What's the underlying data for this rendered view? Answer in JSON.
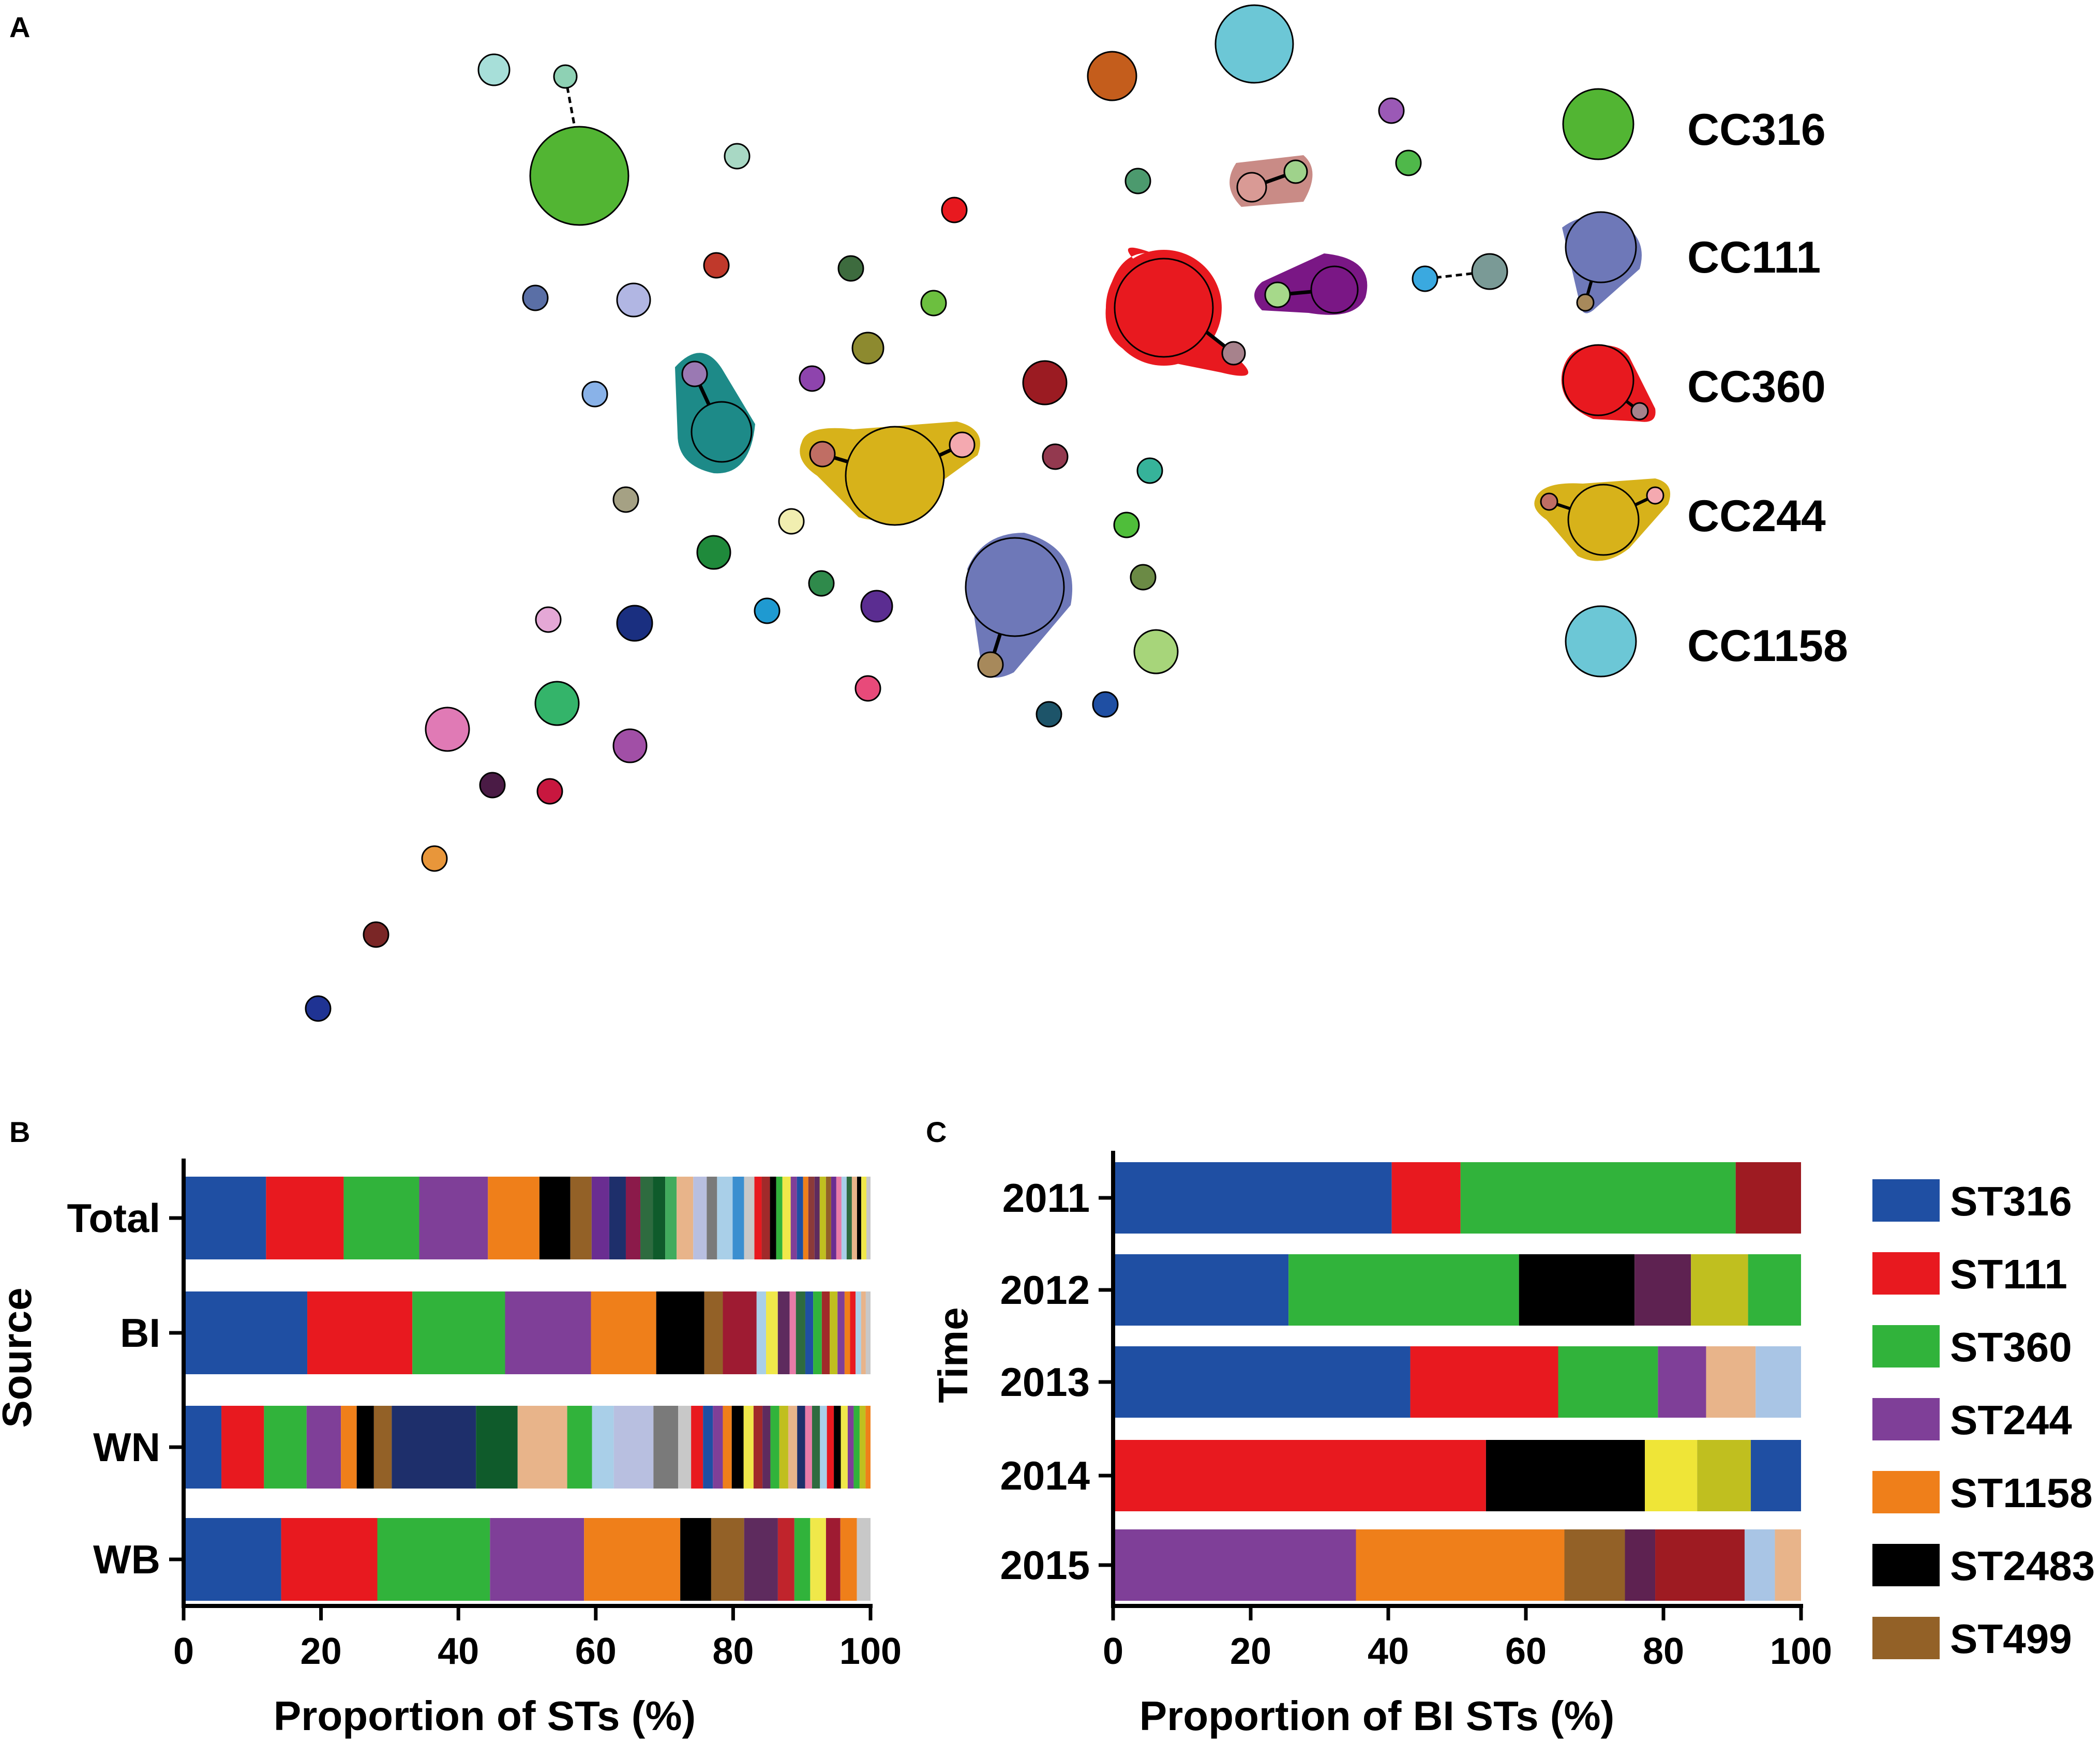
{
  "labels": {
    "panel_a": "A",
    "panel_b": "B",
    "panel_c": "C"
  },
  "network": {
    "legend": [
      {
        "label": "CC316",
        "color": "#52b533"
      },
      {
        "label": "CC111",
        "color": "#6e78b8"
      },
      {
        "label": "CC360",
        "color": "#e8191f"
      },
      {
        "label": "CC244",
        "color": "#d7b21a"
      },
      {
        "label": "CC1158",
        "color": "#6cc7d6"
      }
    ]
  },
  "chart_data": [
    {
      "type": "bar",
      "orientation": "horizontal",
      "stacked": true,
      "panel": "B",
      "categories": [
        "Total",
        "BI",
        "WN",
        "WB"
      ],
      "xlabel": "Proportion of STs (%)",
      "ylabel": "Source",
      "xlim": [
        0,
        100
      ],
      "xticks": [
        "0",
        "20",
        "40",
        "60",
        "80",
        "100"
      ],
      "series": [
        {
          "name": "ST316",
          "color": "#1f4fa3",
          "values": [
            12,
            18,
            5.5,
            14.2
          ]
        },
        {
          "name": "ST111",
          "color": "#e8191f",
          "values": [
            11.3,
            15.3,
            6.2,
            14
          ]
        },
        {
          "name": "ST360",
          "color": "#31b33b",
          "values": [
            11,
            13.5,
            6.2,
            16.4
          ]
        },
        {
          "name": "ST244",
          "color": "#7f3f98",
          "values": [
            10,
            12.5,
            5,
            13.7
          ]
        },
        {
          "name": "ST1158",
          "color": "#ef7f1a",
          "values": [
            7.5,
            9.5,
            2.3,
            14
          ]
        },
        {
          "name": "ST2483",
          "color": "#000000",
          "values": [
            4.5,
            7,
            2.5,
            4.5
          ]
        },
        {
          "name": "ST499",
          "color": "#936127",
          "values": [
            3.1,
            2.7,
            2.6,
            4.8
          ]
        }
      ],
      "others": [
        {
          "category": "Total",
          "segments": [
            {
              "c": "#6a2d91",
              "w": 1.7
            },
            {
              "c": "#1e2f6b",
              "w": 1.6
            },
            {
              "c": "#8b1a4a",
              "w": 1.4
            },
            {
              "c": "#2e6b3f",
              "w": 1.2
            },
            {
              "c": "#0f5b2b",
              "w": 1.2
            },
            {
              "c": "#41ab5d",
              "w": 1.1
            },
            {
              "c": "#e8b48a",
              "w": 1.6
            },
            {
              "c": "#b8bfe0",
              "w": 1.3
            },
            {
              "c": "#7a7a7a",
              "w": 1.0
            },
            {
              "c": "#a9cfe8",
              "w": 1.5
            },
            {
              "c": "#3b8fd0",
              "w": 1.1
            },
            {
              "c": "#c8c8c8",
              "w": 1.0
            },
            {
              "c": "#e8191f",
              "w": 0.7
            },
            {
              "c": "#a12a2a",
              "w": 0.8
            },
            {
              "c": "#000000",
              "w": 0.6
            },
            {
              "c": "#31b33b",
              "w": 0.6
            },
            {
              "c": "#f0e84a",
              "w": 0.8
            },
            {
              "c": "#7f3f98",
              "w": 0.6
            },
            {
              "c": "#1f4fa3",
              "w": 0.6
            },
            {
              "c": "#ef7f1a",
              "w": 0.5
            },
            {
              "c": "#8b3a3a",
              "w": 0.6
            },
            {
              "c": "#5e2b5e",
              "w": 0.5
            },
            {
              "c": "#c0bf1f",
              "w": 0.6
            },
            {
              "c": "#936127",
              "w": 0.5
            },
            {
              "c": "#6a2d91",
              "w": 0.5
            },
            {
              "c": "#e87ba8",
              "w": 0.5
            },
            {
              "c": "#a9cfe8",
              "w": 0.5
            },
            {
              "c": "#2e6b3f",
              "w": 0.5
            },
            {
              "c": "#e8b48a",
              "w": 0.5
            },
            {
              "c": "#000000",
              "w": 0.4
            },
            {
              "c": "#f0e84a",
              "w": 0.5
            },
            {
              "c": "#c8c8c8",
              "w": 0.4
            }
          ]
        },
        {
          "category": "BI",
          "segments": [
            {
              "c": "#9e1b32",
              "w": 4.3
            },
            {
              "c": "#a9cfe8",
              "w": 1.2
            },
            {
              "c": "#f0e84a",
              "w": 1.5
            },
            {
              "c": "#5e2b5e",
              "w": 1.5
            },
            {
              "c": "#e87ba8",
              "w": 0.8
            },
            {
              "c": "#2e6b3f",
              "w": 1.2
            },
            {
              "c": "#1f4fa3",
              "w": 1.0
            },
            {
              "c": "#31b33b",
              "w": 1.1
            },
            {
              "c": "#a12a2a",
              "w": 1.0
            },
            {
              "c": "#c0bf1f",
              "w": 1.0
            },
            {
              "c": "#7f3f98",
              "w": 0.9
            },
            {
              "c": "#ef7f1a",
              "w": 0.7
            },
            {
              "c": "#e8191f",
              "w": 0.7
            },
            {
              "c": "#a9cfe8",
              "w": 0.7
            },
            {
              "c": "#e8b48a",
              "w": 0.6
            },
            {
              "c": "#c8c8c8",
              "w": 0.6
            }
          ]
        },
        {
          "category": "WN",
          "segments": [
            {
              "c": "#1e2f6b",
              "w": 8.5
            },
            {
              "c": "#0f5b2b",
              "w": 4.2
            },
            {
              "c": "#e8b48a",
              "w": 5.0
            },
            {
              "c": "#31b33b",
              "w": 2.5
            },
            {
              "c": "#a9cfe8",
              "w": 2.2
            },
            {
              "c": "#b8bfe0",
              "w": 4.0
            },
            {
              "c": "#7a7a7a",
              "w": 2.5
            },
            {
              "c": "#c8c8c8",
              "w": 1.3
            },
            {
              "c": "#e8191f",
              "w": 1.2
            },
            {
              "c": "#1f4fa3",
              "w": 1.0
            },
            {
              "c": "#7f3f98",
              "w": 1.0
            },
            {
              "c": "#ef7f1a",
              "w": 0.9
            },
            {
              "c": "#000000",
              "w": 1.2
            },
            {
              "c": "#f0e84a",
              "w": 1.0
            },
            {
              "c": "#a12a2a",
              "w": 0.9
            },
            {
              "c": "#5e2b5e",
              "w": 0.8
            },
            {
              "c": "#31b33b",
              "w": 0.9
            },
            {
              "c": "#c0bf1f",
              "w": 0.9
            },
            {
              "c": "#e8b48a",
              "w": 0.9
            },
            {
              "c": "#1e2f6b",
              "w": 0.8
            },
            {
              "c": "#e87ba8",
              "w": 0.7
            },
            {
              "c": "#2e6b3f",
              "w": 0.8
            },
            {
              "c": "#a9cfe8",
              "w": 0.7
            },
            {
              "c": "#e8191f",
              "w": 0.7
            },
            {
              "c": "#000000",
              "w": 0.7
            },
            {
              "c": "#f0e84a",
              "w": 0.7
            },
            {
              "c": "#7f3f98",
              "w": 0.6
            },
            {
              "c": "#31b33b",
              "w": 0.6
            },
            {
              "c": "#c0bf1f",
              "w": 0.6
            },
            {
              "c": "#ef7f1a",
              "w": 0.5
            }
          ]
        },
        {
          "category": "WB",
          "segments": [
            {
              "c": "#5e2b5e",
              "w": 4.7
            },
            {
              "c": "#c0242c",
              "w": 2.3
            },
            {
              "c": "#31b33b",
              "w": 2.2
            },
            {
              "c": "#f0e84a",
              "w": 2.2
            },
            {
              "c": "#9e1b32",
              "w": 2.0
            },
            {
              "c": "#ef7f1a",
              "w": 2.3
            },
            {
              "c": "#c8c8c8",
              "w": 1.9
            }
          ]
        }
      ]
    },
    {
      "type": "bar",
      "orientation": "horizontal",
      "stacked": true,
      "panel": "C",
      "categories": [
        "2011",
        "2012",
        "2013",
        "2014",
        "2015"
      ],
      "xlabel": "Proportion of BI STs (%)",
      "ylabel": "Time",
      "xlim": [
        0,
        100
      ],
      "xticks": [
        "0",
        "20",
        "40",
        "60",
        "80",
        "100"
      ],
      "legend": [
        "ST316",
        "ST111",
        "ST360",
        "ST244",
        "ST1158",
        "ST2483",
        "ST499"
      ],
      "legend_colors": [
        "#1f4fa3",
        "#e8191f",
        "#31b33b",
        "#7f3f98",
        "#ef7f1a",
        "#000000",
        "#936127"
      ],
      "rows": [
        {
          "category": "2011",
          "segments": [
            {
              "name": "ST316",
              "c": "#1f4fa3",
              "v": 40.5
            },
            {
              "name": "ST111",
              "c": "#e8191f",
              "v": 10
            },
            {
              "name": "ST360",
              "c": "#31b33b",
              "v": 40
            },
            {
              "name": "other",
              "c": "#9e1b22",
              "v": 9.5
            }
          ]
        },
        {
          "category": "2012",
          "segments": [
            {
              "name": "ST316",
              "c": "#1f4fa3",
              "v": 25.5
            },
            {
              "name": "ST360",
              "c": "#31b33b",
              "v": 33.5
            },
            {
              "name": "ST2483",
              "c": "#000000",
              "v": 16.8
            },
            {
              "name": "other",
              "c": "#5e2251",
              "v": 8.2
            },
            {
              "name": "other",
              "c": "#c0bf1f",
              "v": 8.3
            },
            {
              "name": "ST360",
              "c": "#31b33b",
              "v": 7.7
            }
          ]
        },
        {
          "category": "2013",
          "segments": [
            {
              "name": "ST316",
              "c": "#1f4fa3",
              "v": 43.2
            },
            {
              "name": "ST111",
              "c": "#e8191f",
              "v": 21.5
            },
            {
              "name": "ST360",
              "c": "#31b33b",
              "v": 14.5
            },
            {
              "name": "ST244",
              "c": "#7f3f98",
              "v": 7
            },
            {
              "name": "other",
              "c": "#e8b48a",
              "v": 7.2
            },
            {
              "name": "other",
              "c": "#a9c5e5",
              "v": 6.6
            }
          ]
        },
        {
          "category": "2014",
          "segments": [
            {
              "name": "ST111",
              "c": "#e8191f",
              "v": 54.2
            },
            {
              "name": "ST2483",
              "c": "#000000",
              "v": 23.1
            },
            {
              "name": "other",
              "c": "#efe537",
              "v": 7.6
            },
            {
              "name": "other",
              "c": "#c0bf1f",
              "v": 7.8
            },
            {
              "name": "ST316",
              "c": "#1f4fa3",
              "v": 7.3
            }
          ]
        },
        {
          "category": "2015",
          "segments": [
            {
              "name": "ST244",
              "c": "#7f3f98",
              "v": 35.3
            },
            {
              "name": "ST1158",
              "c": "#ef7f1a",
              "v": 30.3
            },
            {
              "name": "ST499",
              "c": "#936127",
              "v": 8.8
            },
            {
              "name": "other",
              "c": "#5e2251",
              "v": 4.4
            },
            {
              "name": "other",
              "c": "#9e1b22",
              "v": 13
            },
            {
              "name": "other",
              "c": "#a9c5e5",
              "v": 4.4
            },
            {
              "name": "other",
              "c": "#e8b48a",
              "v": 3.8
            }
          ]
        }
      ]
    }
  ]
}
